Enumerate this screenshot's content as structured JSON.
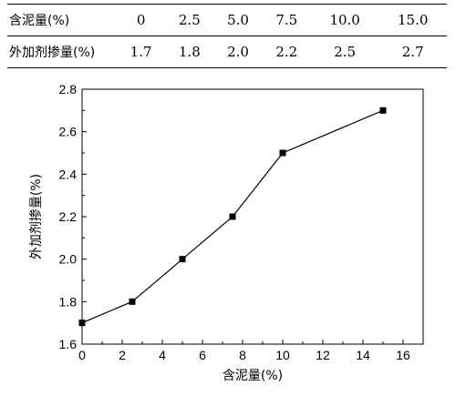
{
  "table": {
    "row1": {
      "label": "含泥量(%)",
      "cells": [
        "0",
        "2.5",
        "5.0",
        "7.5",
        "10.0",
        "15.0"
      ]
    },
    "row2": {
      "label": "外加剂掺量(%)",
      "cells": [
        "1.7",
        "1.8",
        "2.0",
        "2.2",
        "2.5",
        "2.7"
      ]
    }
  },
  "chart_data": {
    "type": "line",
    "x": [
      0,
      2.5,
      5,
      7.5,
      10,
      15
    ],
    "series": [
      {
        "values": [
          1.7,
          1.8,
          2.0,
          2.2,
          2.5,
          2.7
        ]
      }
    ],
    "xlabel": "含泥量(%)",
    "ylabel": "外加剂掺量(%)",
    "xlim": [
      0,
      17
    ],
    "ylim": [
      1.6,
      2.8
    ],
    "xticks": [
      "0",
      "2",
      "4",
      "6",
      "8",
      "10",
      "12",
      "14",
      "16"
    ],
    "yticks": [
      "1.6",
      "1.8",
      "2.0",
      "2.2",
      "2.4",
      "2.6",
      "2.8"
    ],
    "marker": "square",
    "grid": false,
    "line_color": "#000000"
  }
}
